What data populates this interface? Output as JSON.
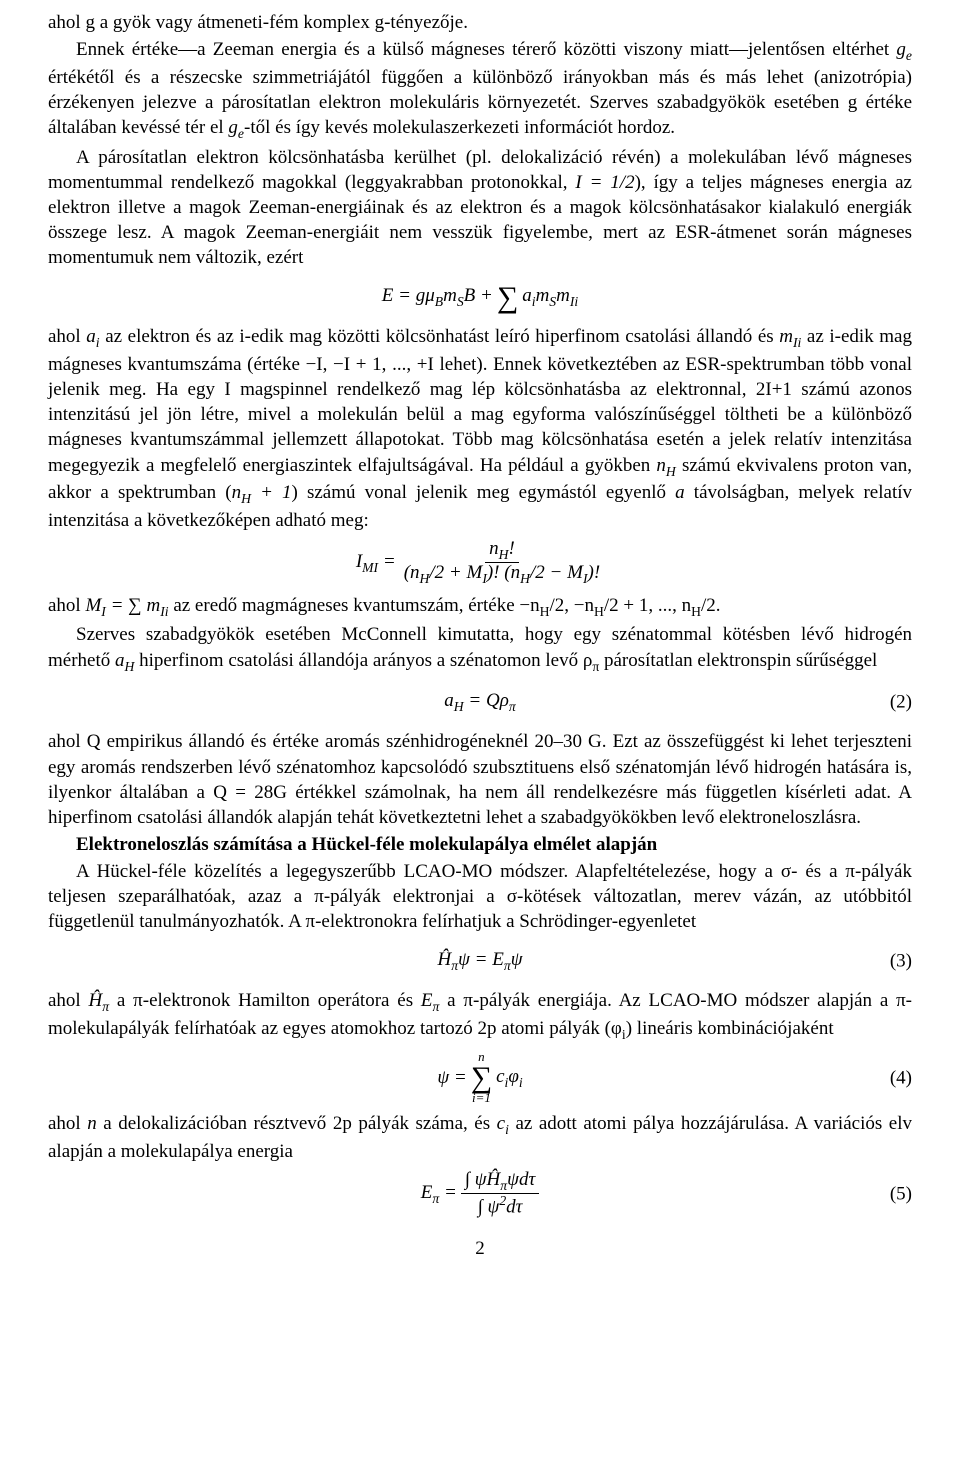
{
  "p1": "ahol g a gyök vagy átmeneti-fém komplex g-tényezője.",
  "p2a": "Ennek értéke—a Zeeman energia és a külső mágneses térerő közötti viszony miatt—jelentősen eltérhet ",
  "p2b": " értékétől és a részecske szimmetriájától függően a különböző irányokban más és más lehet (anizotrópia) érzékenyen jelezve a párosítatlan elektron molekuláris környezetét. Szerves szabadgyökök esetében g értéke általában kevéssé tér el ",
  "p2c": "-től és így kevés molekulaszerkezeti információt hordoz.",
  "ge": "g<sub>e</sub>",
  "p3a": "A párosítatlan elektron kölcsönhatásba kerülhet (pl. delokalizáció révén) a molekulában lévő mágneses momentummal rendelkező magokkal (leggyakrabban protonokkal, ",
  "p3half": "I = 1/2",
  "p3b": "), így a teljes mágneses energia az elektron illetve a magok Zeeman-energiáinak és az elektron és a magok kölcsönhatásakor kialakuló energiák összege lesz. A magok Zeeman-energiáit nem vesszük figyelembe, mert az ESR-átmenet során mágneses momentumuk nem változik, ezért",
  "eq1_lhs": "E = gμ<sub>B</sub>m<sub>S</sub>B +",
  "eq1_rhs": "a<sub>i</sub>m<sub>S</sub>m<sub>Ii</sub>",
  "p4a": "ahol ",
  "p4ai": "a<sub>i</sub>",
  "p4b": " az elektron és az i-edik mag közötti kölcsönhatást leíró hiperfinom csatolási állandó és ",
  "p4mi": "m<sub>Ii</sub>",
  "p4c": " az i-edik mag mágneses kvantumszáma (értéke −I, −I + 1, ..., +I lehet). Ennek következtében az ESR-spektrumban több vonal jelenik meg. Ha egy I magspinnel rendelkező mag lép kölcsönhatásba az elektronnal, 2I+1 számú azonos intenzitású jel jön létre, mivel a molekulán belül a mag egyforma valószínűséggel töltheti be a különböző mágneses kvantumszámmal jellemzett állapotokat. Több mag kölcsönhatása esetén a jelek relatív intenzitása megegyezik a megfelelő energiaszintek elfajultságával. Ha például a gyökben ",
  "p4nh": "n<sub>H</sub>",
  "p4d": " számú ekvivalens proton van, akkor a spektrumban (",
  "p4nh1": "n<sub>H</sub> + 1",
  "p4e": ") számú vonal jelenik meg egymástól egyenlő ",
  "p4a2": "a",
  "p4f": " távolságban, melyek relatív intenzitása a következőképen adható meg:",
  "eq2_lhs": "I<sub>MI</sub> =",
  "eq2_top": "n<sub>H</sub>!",
  "eq2_bot": "(n<sub>H</sub>/2 + M<sub>I</sub>)! (n<sub>H</sub>/2 − M<sub>I</sub>)!",
  "p5a": "ahol ",
  "p5mi": "M<sub>I</sub> = ∑ m<sub>Ii</sub>",
  "p5b": " az eredő magmágneses kvantumszám, értéke −n<sub>H</sub>/2, −n<sub>H</sub>/2 + 1, ..., n<sub>H</sub>/2.",
  "p6a": "Szerves szabadgyökök esetében McConnell kimutatta, hogy egy szénatommal kötésben lévő hidrogén mérhető ",
  "p6ah": "a<sub>H</sub>",
  "p6b": " hiperfinom csatolási állandója arányos a szénatomon levő ρ<sub>π</sub> párosítatlan elektronspin sűrűséggel",
  "eq3_body": "a<sub>H</sub> = Qρ<sub>π</sub>",
  "eq3_num": "(2)",
  "p7": "ahol Q empirikus állandó és értéke aromás szénhidrogéneknél 20–30 G. Ezt az összefüggést ki lehet terjeszteni egy aromás rendszerben lévő szénatomhoz kapcsolódó szubsztituens első szénatomján lévő hidrogén hatására is, ilyenkor általában a Q = 28G értékkel számolnak, ha nem áll rendelkezésre más független kísérleti adat. A hiperfinom csatolási állandók alapján tehát következtetni lehet a szabadgyökökben levő elektroneloszlásra.",
  "h1": "Elektroneloszlás számítása a Hückel-féle molekulapálya elmélet alapján",
  "p8": "A Hückel-féle közelítés a legegyszerűbb LCAO-MO módszer. Alapfeltételezése, hogy a σ- és a π-pályák teljesen szeparálhatóak, azaz a π-pályák elektronjai a σ-kötések változatlan, merev vázán, az utóbbitól függetlenül tanulmányozhatók. A π-elektronokra felírhatjuk a Schrödinger-egyenletet",
  "eq4_body": "Ĥ<sub>π</sub>ψ = E<sub>π</sub>ψ",
  "eq4_num": "(3)",
  "p9a": "ahol ",
  "p9h": "Ĥ<sub>π</sub>",
  "p9b": " a π-elektronok Hamilton operátora és ",
  "p9e": "E<sub>π</sub>",
  "p9c": " a π-pályák energiája. Az LCAO-MO módszer alapján a π-molekulapályák felírhatóak az egyes atomokhoz tartozó 2p atomi pályák (φ<sub>i</sub>) lineáris kombinációjaként",
  "eq5_lhs": "ψ =",
  "eq5_top": "n",
  "eq5_bot": "i=1",
  "eq5_rhs": "c<sub>i</sub>φ<sub>i</sub>",
  "eq5_num": "(4)",
  "p10a": "ahol ",
  "p10n": "n",
  "p10b": " a delokalizációban résztvevő 2p pályák száma, és ",
  "p10c": "c<sub>i</sub>",
  "p10d": " az adott atomi pálya hozzájárulása. A variációs elv alapján a molekulapálya energia",
  "eq6_lhs": "E<sub>π</sub> =",
  "eq6_top": "∫ ψĤ<sub>π</sub>ψdτ",
  "eq6_bot": "∫ ψ<sup>2</sup>dτ",
  "eq6_num": "(5)",
  "pagenum": "2"
}
